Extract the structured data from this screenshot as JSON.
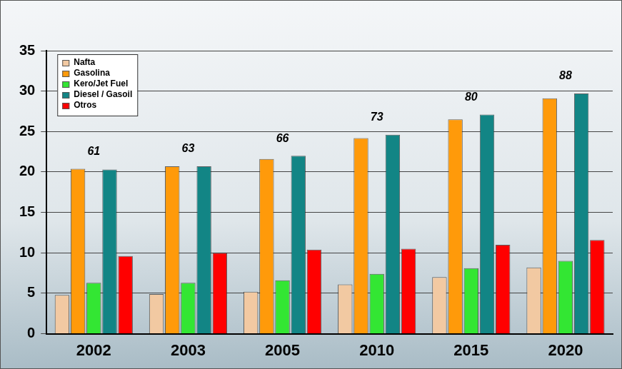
{
  "chart_data": {
    "type": "bar",
    "categories": [
      "2002",
      "2003",
      "2005",
      "2010",
      "2015",
      "2020"
    ],
    "series": [
      {
        "name": "Nafta",
        "color": "#f2c9a2",
        "values": [
          4.8,
          4.9,
          5.2,
          6.1,
          7.0,
          8.2
        ]
      },
      {
        "name": "Gasolina",
        "color": "#ff9a0a",
        "values": [
          20.4,
          20.7,
          21.6,
          24.2,
          26.5,
          29.1
        ]
      },
      {
        "name": "Kero/Jet Fuel",
        "color": "#33e633",
        "values": [
          6.3,
          6.3,
          6.6,
          7.4,
          8.1,
          9.0
        ]
      },
      {
        "name": "Diesel / Gasoil",
        "color": "#128585",
        "values": [
          20.3,
          20.7,
          22.0,
          24.6,
          27.1,
          29.7
        ]
      },
      {
        "name": "Otros",
        "color": "#ff0000",
        "values": [
          9.6,
          10.0,
          10.4,
          10.5,
          11.0,
          11.6
        ]
      }
    ],
    "annotations": [
      {
        "x": "2002",
        "text": "61"
      },
      {
        "x": "2003",
        "text": "63"
      },
      {
        "x": "2005",
        "text": "66"
      },
      {
        "x": "2010",
        "text": "73"
      },
      {
        "x": "2015",
        "text": "80"
      },
      {
        "x": "2020",
        "text": "88"
      }
    ],
    "ylim": [
      0,
      35
    ],
    "yticks": [
      0,
      5,
      10,
      15,
      20,
      25,
      30,
      35
    ],
    "grid": true,
    "legend": "top-left"
  }
}
